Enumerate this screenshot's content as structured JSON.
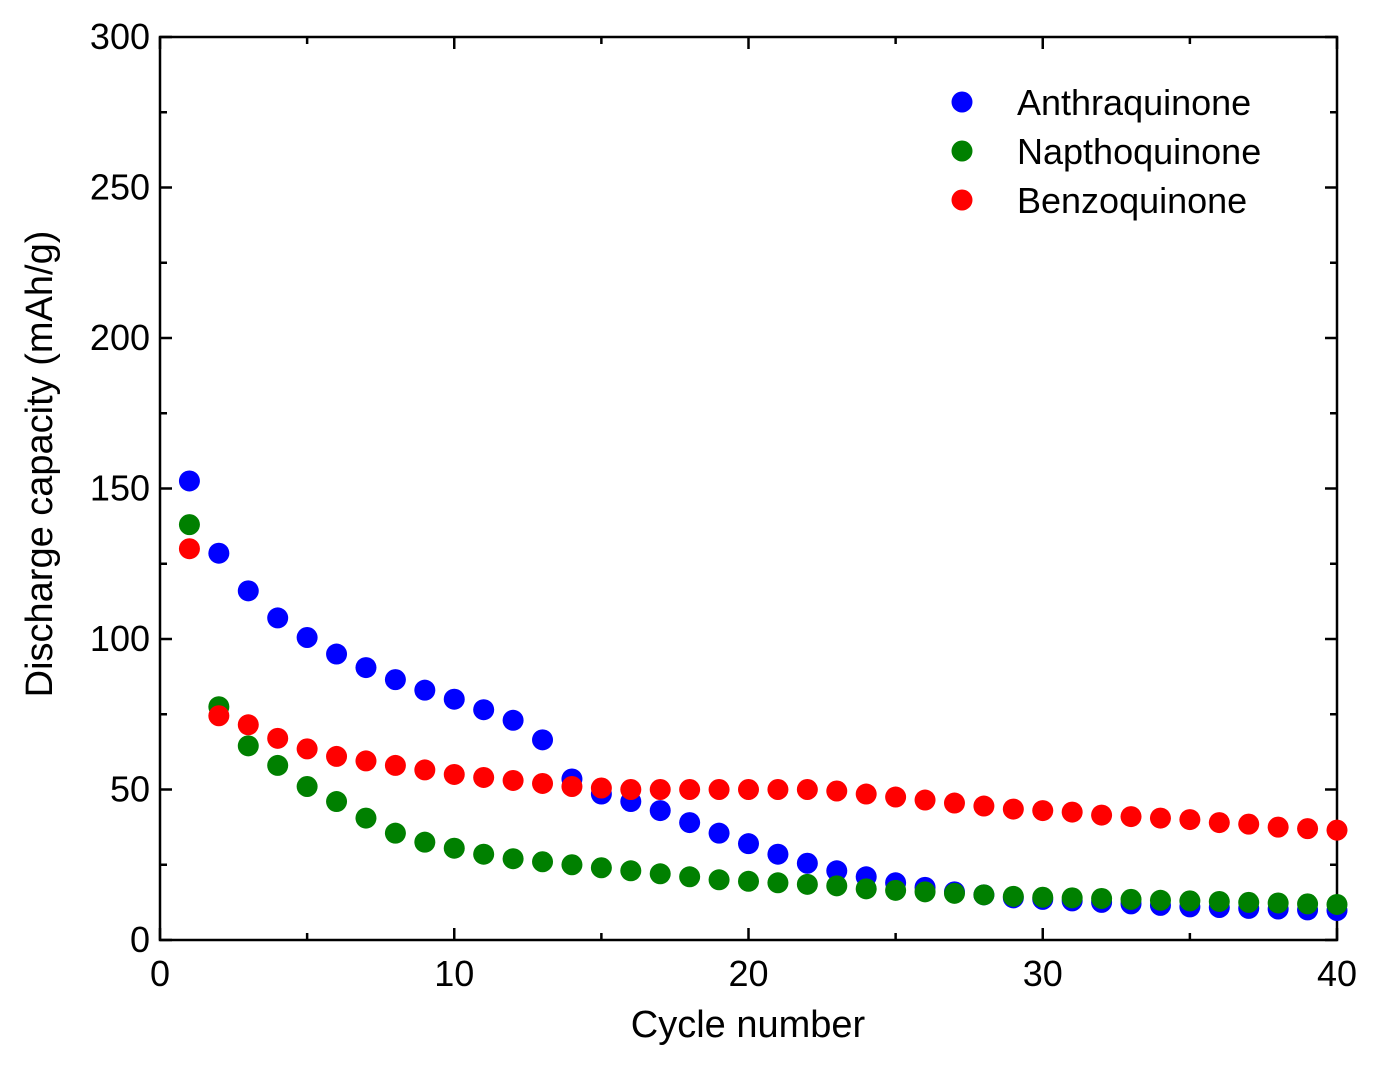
{
  "chart_data": {
    "type": "scatter",
    "title": "",
    "xlabel": "Cycle number",
    "ylabel": "Discharge capacity (mAh/g)",
    "xlim": [
      0,
      40
    ],
    "ylim": [
      0,
      300
    ],
    "xticks": [
      0,
      10,
      20,
      30,
      40
    ],
    "yticks": [
      0,
      50,
      100,
      150,
      200,
      250,
      300
    ],
    "grid": false,
    "legend_position": "top-right",
    "x": [
      1,
      2,
      3,
      4,
      5,
      6,
      7,
      8,
      9,
      10,
      11,
      12,
      13,
      14,
      15,
      16,
      17,
      18,
      19,
      20,
      21,
      22,
      23,
      24,
      25,
      26,
      27,
      28,
      29,
      30,
      31,
      32,
      33,
      34,
      35,
      36,
      37,
      38,
      39,
      40
    ],
    "series": [
      {
        "name": "Anthraquinone",
        "color": "#0000ff",
        "values": [
          152.5,
          128.5,
          116,
          107,
          100.5,
          95,
          90.5,
          86.5,
          83,
          80,
          76.5,
          73,
          66.5,
          53.5,
          48.5,
          46,
          43,
          39,
          35.5,
          32,
          28.5,
          25.5,
          23,
          21,
          19,
          17.5,
          16,
          15,
          14,
          13.5,
          13,
          12.5,
          12,
          11.5,
          11,
          10.8,
          10.5,
          10.3,
          10,
          9.8
        ]
      },
      {
        "name": "Napthoquinone",
        "color": "#008000",
        "values": [
          138,
          77.5,
          64.5,
          58,
          51,
          46,
          40.5,
          35.5,
          32.5,
          30.5,
          28.5,
          27,
          26,
          25,
          24,
          23,
          22,
          21,
          20,
          19.5,
          19,
          18.5,
          18,
          17,
          16.5,
          16,
          15.5,
          15,
          14.5,
          14.2,
          14,
          13.8,
          13.5,
          13.2,
          13,
          12.8,
          12.5,
          12.3,
          12,
          11.8
        ]
      },
      {
        "name": "Benzoquinone",
        "color": "#ff0000",
        "values": [
          130,
          74.5,
          71.5,
          67,
          63.5,
          61,
          59.5,
          58,
          56.5,
          55,
          54,
          53,
          52,
          51,
          50.5,
          50,
          50,
          50,
          50,
          50,
          50,
          50,
          49.5,
          48.5,
          47.5,
          46.5,
          45.5,
          44.5,
          43.5,
          43,
          42.5,
          41.5,
          41,
          40.5,
          40,
          39,
          38.5,
          37.5,
          37,
          36.5
        ]
      }
    ]
  }
}
